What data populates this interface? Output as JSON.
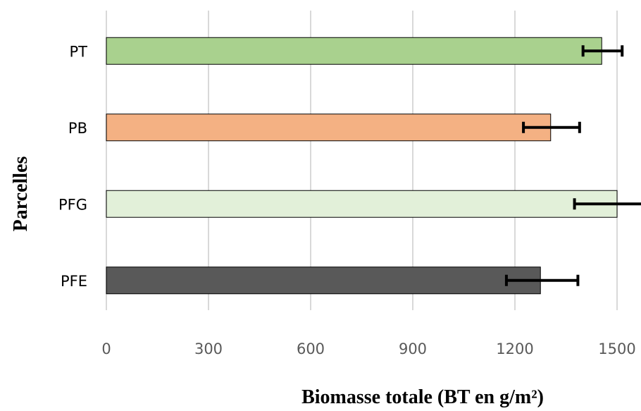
{
  "chart_data": {
    "type": "bar",
    "orientation": "horizontal",
    "title": "",
    "xlabel": "Biomasse totale (BT en g/m²)",
    "ylabel": "Parcelles",
    "xlim": [
      0,
      1500
    ],
    "xticks": [
      "0",
      "300",
      "600",
      "900",
      "1200",
      "1500"
    ],
    "grid": true,
    "categories": [
      "PT",
      "PB",
      "PFG",
      "PFE"
    ],
    "values": [
      1455,
      1305,
      1500,
      1275
    ],
    "error_low": [
      1400,
      1225,
      1375,
      1175
    ],
    "error_high": [
      1515,
      1390,
      1585,
      1385
    ],
    "colors": [
      "#A9D18E",
      "#F4B183",
      "#E2F0D9",
      "#595959"
    ]
  }
}
